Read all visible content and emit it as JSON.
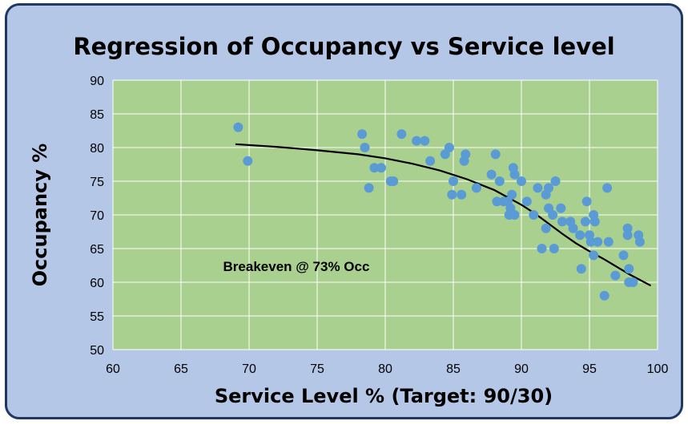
{
  "chart_data": {
    "type": "scatter",
    "title": "Regression of Occupancy vs Service level",
    "xlabel": "Service Level % (Target: 90/30)",
    "ylabel": "Occupancy %",
    "xlim": [
      60,
      100
    ],
    "ylim": [
      50,
      90
    ],
    "xticks": [
      "60",
      "65",
      "70",
      "75",
      "80",
      "85",
      "90",
      "95",
      "100"
    ],
    "yticks": [
      "50",
      "55",
      "60",
      "65",
      "70",
      "75",
      "80",
      "85",
      "90"
    ],
    "grid": true,
    "legend": "none",
    "plot_background": "#a9d08e",
    "marker_color": "#5b9bd5",
    "trendline_color": "#000000",
    "annotation": "Breakeven @ 73% Occ",
    "points": [
      [
        69.2,
        83
      ],
      [
        69.9,
        78
      ],
      [
        78.3,
        82
      ],
      [
        78.5,
        80
      ],
      [
        78.8,
        74
      ],
      [
        79.2,
        77
      ],
      [
        79.7,
        77
      ],
      [
        80.4,
        75
      ],
      [
        80.6,
        75
      ],
      [
        81.2,
        82
      ],
      [
        82.3,
        81
      ],
      [
        82.9,
        81
      ],
      [
        83.3,
        78
      ],
      [
        84.4,
        79
      ],
      [
        84.7,
        80
      ],
      [
        84.9,
        73
      ],
      [
        85.0,
        75
      ],
      [
        85.6,
        73
      ],
      [
        85.8,
        78
      ],
      [
        85.9,
        79
      ],
      [
        86.7,
        74
      ],
      [
        87.8,
        76
      ],
      [
        88.1,
        79
      ],
      [
        88.2,
        72
      ],
      [
        88.4,
        75
      ],
      [
        88.7,
        72
      ],
      [
        89.0,
        72
      ],
      [
        89.1,
        70
      ],
      [
        89.2,
        71
      ],
      [
        89.3,
        73
      ],
      [
        89.4,
        77
      ],
      [
        89.5,
        70
      ],
      [
        89.5,
        76
      ],
      [
        90.0,
        75
      ],
      [
        90.4,
        72
      ],
      [
        90.9,
        70
      ],
      [
        91.2,
        74
      ],
      [
        91.5,
        65
      ],
      [
        91.8,
        68
      ],
      [
        91.8,
        73
      ],
      [
        92.0,
        71
      ],
      [
        92.0,
        74
      ],
      [
        92.3,
        70
      ],
      [
        92.4,
        65
      ],
      [
        92.5,
        75
      ],
      [
        92.9,
        71
      ],
      [
        93.0,
        69
      ],
      [
        93.6,
        69
      ],
      [
        93.8,
        68
      ],
      [
        94.3,
        67
      ],
      [
        94.4,
        62
      ],
      [
        94.7,
        69
      ],
      [
        94.8,
        72
      ],
      [
        95.0,
        67
      ],
      [
        95.1,
        66
      ],
      [
        95.3,
        70
      ],
      [
        95.3,
        64
      ],
      [
        95.4,
        69
      ],
      [
        95.6,
        66
      ],
      [
        96.1,
        58
      ],
      [
        96.3,
        74
      ],
      [
        96.4,
        66
      ],
      [
        96.9,
        61
      ],
      [
        97.5,
        64
      ],
      [
        97.8,
        68
      ],
      [
        97.8,
        67
      ],
      [
        97.9,
        62
      ],
      [
        97.9,
        60
      ],
      [
        98.2,
        60
      ],
      [
        98.6,
        67
      ],
      [
        98.7,
        66
      ]
    ],
    "trendline": [
      [
        69,
        80.5
      ],
      [
        72,
        80.1
      ],
      [
        75,
        79.6
      ],
      [
        78,
        79.0
      ],
      [
        80,
        78.4
      ],
      [
        82,
        77.6
      ],
      [
        84,
        76.6
      ],
      [
        86,
        75.3
      ],
      [
        88,
        73.7
      ],
      [
        90,
        71.5
      ],
      [
        91,
        70.2
      ],
      [
        92,
        68.7
      ],
      [
        93,
        67.2
      ],
      [
        94,
        65.8
      ],
      [
        95,
        64.6
      ],
      [
        96,
        63.5
      ],
      [
        97,
        62.3
      ],
      [
        98,
        61.1
      ],
      [
        99.5,
        59.5
      ]
    ]
  }
}
